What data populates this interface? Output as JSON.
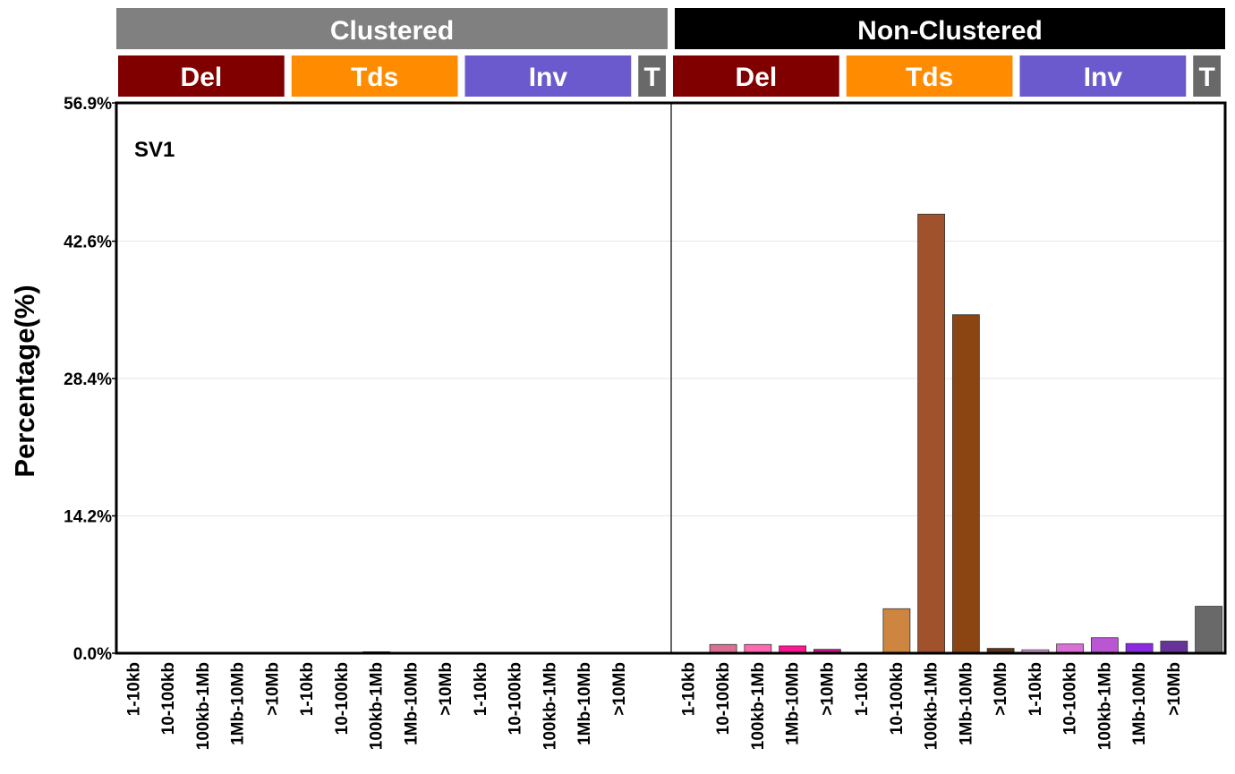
{
  "chart_data": {
    "type": "bar",
    "panel_label": "SV1",
    "ylabel": "Percentage(%)",
    "ylim": [
      0,
      56.9
    ],
    "yticks": [
      0.0,
      14.2,
      28.4,
      42.6,
      56.9
    ],
    "ytick_labels": [
      "0.0%",
      "14.2%",
      "28.4%",
      "42.6%",
      "56.9%"
    ],
    "grid": true,
    "groups": [
      {
        "label": "Clustered",
        "color": "#808080",
        "subgroups": [
          {
            "label": "Del",
            "color": "#800000",
            "count": 5
          },
          {
            "label": "Tds",
            "color": "#FF8C00",
            "count": 5
          },
          {
            "label": "Inv",
            "color": "#6A5ACD",
            "count": 5
          },
          {
            "label": "T",
            "color": "#696969",
            "count": 1
          }
        ]
      },
      {
        "label": "Non-Clustered",
        "color": "#000000",
        "subgroups": [
          {
            "label": "Del",
            "color": "#800000",
            "count": 5
          },
          {
            "label": "Tds",
            "color": "#FF8C00",
            "count": 5
          },
          {
            "label": "Inv",
            "color": "#6A5ACD",
            "count": 5
          },
          {
            "label": "T",
            "color": "#696969",
            "count": 1
          }
        ]
      }
    ],
    "categories": [
      "1-10kb",
      "10-100kb",
      "100kb-1Mb",
      "1Mb-10Mb",
      ">10Mb",
      "1-10kb",
      "10-100kb",
      "100kb-1Mb",
      "1Mb-10Mb",
      ">10Mb",
      "1-10kb",
      "10-100kb",
      "100kb-1Mb",
      "1Mb-10Mb",
      ">10Mb",
      "",
      "1-10kb",
      "10-100kb",
      "100kb-1Mb",
      "1Mb-10Mb",
      ">10Mb",
      "1-10kb",
      "10-100kb",
      "100kb-1Mb",
      "1Mb-10Mb",
      ">10Mb",
      "1-10kb",
      "10-100kb",
      "100kb-1Mb",
      "1Mb-10Mb",
      ">10Mb",
      ""
    ],
    "values": [
      0.0,
      0.0,
      0.0,
      0.0,
      0.0,
      0.0,
      0.0,
      0.15,
      0.0,
      0.0,
      0.0,
      0.0,
      0.0,
      0.0,
      0.0,
      0.0,
      0.0,
      0.9,
      0.9,
      0.75,
      0.4,
      0.0,
      4.6,
      45.4,
      35.0,
      0.5,
      0.35,
      0.95,
      1.6,
      1.0,
      1.25,
      4.85
    ],
    "bar_colors": [
      "#FFB6C1",
      "#DB7093",
      "#FF69B4",
      "#FF1493",
      "#C71585",
      "#F4A460",
      "#CD853F",
      "#A0522D",
      "#8B4513",
      "#5C3317",
      "#DDA0DD",
      "#DA70D6",
      "#BA55D3",
      "#8A2BE2",
      "#663399",
      "#696969",
      "#FFB6C1",
      "#DB7093",
      "#FF69B4",
      "#FF1493",
      "#C71585",
      "#F4A460",
      "#CD853F",
      "#A0522D",
      "#8B4513",
      "#5C3317",
      "#DDA0DD",
      "#DA70D6",
      "#BA55D3",
      "#8A2BE2",
      "#663399",
      "#696969"
    ]
  }
}
